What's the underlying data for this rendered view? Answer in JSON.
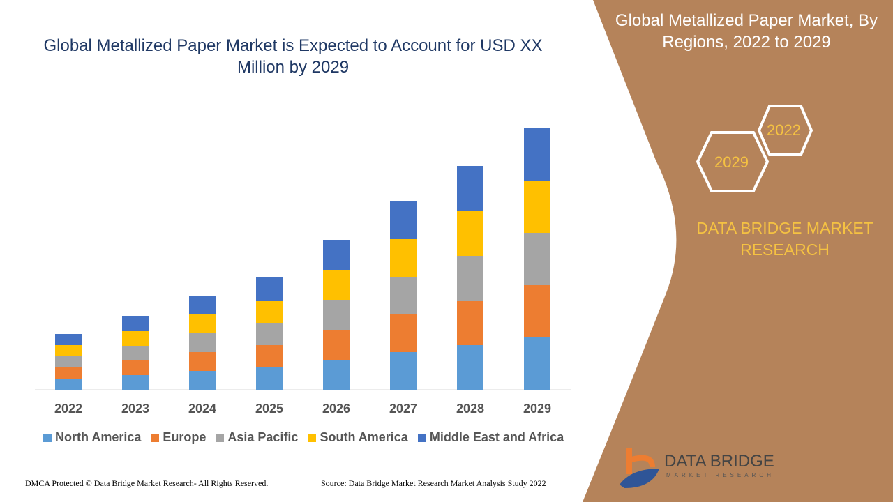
{
  "title": "Global Metallized Paper Market is Expected to Account for USD XX Million by 2029",
  "side_panel": {
    "title": "Global Metallized Paper Market, By Regions, 2022 to 2029",
    "hex_left": "2029",
    "hex_right": "2022",
    "brand": "DATA BRIDGE MARKET RESEARCH",
    "panel_color": "#B5835A"
  },
  "logo": {
    "name": "DATA BRIDGE",
    "sub": "MARKET RESEARCH"
  },
  "footer": {
    "left": "DMCA Protected © Data Bridge Market Research- All Rights Reserved.",
    "right": "Source: Data Bridge Market Research Market Analysis Study 2022"
  },
  "chart_data": {
    "type": "bar",
    "stacked": true,
    "grid": false,
    "legend": "bottom",
    "categories": [
      "2022",
      "2023",
      "2024",
      "2025",
      "2026",
      "2027",
      "2028",
      "2029"
    ],
    "series": [
      {
        "name": "North America",
        "color": "#5B9BD5",
        "values": [
          16,
          21,
          27,
          32,
          43,
          54,
          64,
          75
        ]
      },
      {
        "name": "Europe",
        "color": "#ED7D31",
        "values": [
          16,
          21,
          27,
          32,
          43,
          54,
          64,
          75
        ]
      },
      {
        "name": "Asia Pacific",
        "color": "#A5A5A5",
        "values": [
          16,
          21,
          27,
          32,
          43,
          54,
          64,
          75
        ]
      },
      {
        "name": "South America",
        "color": "#FFC000",
        "values": [
          16,
          21,
          27,
          32,
          43,
          54,
          64,
          75
        ]
      },
      {
        "name": "Middle East and Africa",
        "color": "#4472C4",
        "values": [
          16,
          22,
          27,
          33,
          43,
          54,
          65,
          75
        ]
      }
    ]
  }
}
